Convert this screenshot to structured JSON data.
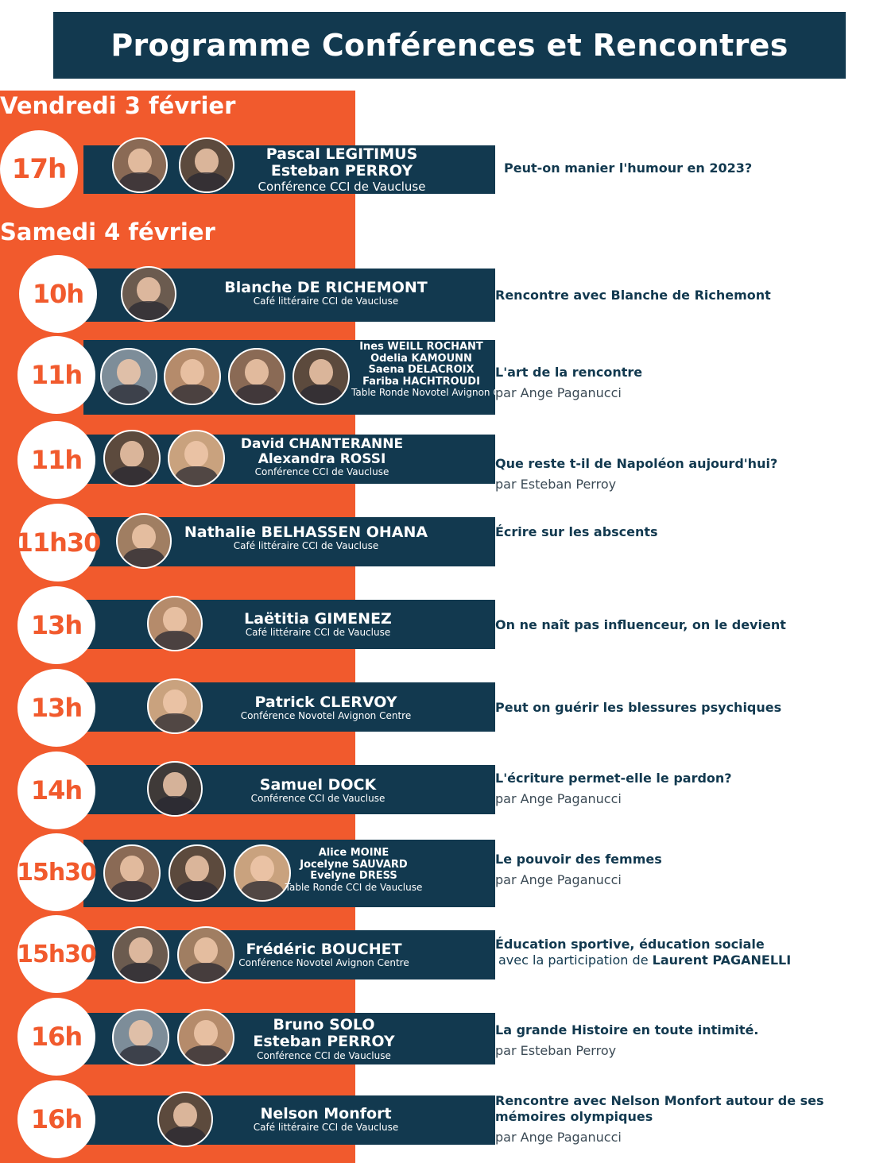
{
  "header": {
    "title": "Programme Conférences et Rencontres"
  },
  "days": {
    "friday": "Vendredi 3 février",
    "saturday": "Samedi 4 février"
  },
  "events": [
    {
      "time": "17h",
      "names": [
        "Pascal LEGITIMUS",
        "Esteban PERROY"
      ],
      "venue": "Conférence CCI de Vaucluse",
      "topic": "Peut-on manier l'humour en 2023?"
    },
    {
      "time": "10h",
      "names": [
        "Blanche DE RICHEMONT"
      ],
      "venue": "Café littéraire CCI de Vaucluse",
      "topic": "Rencontre avec Blanche de Richemont"
    },
    {
      "time": "11h",
      "names": [
        "Ines WEILL ROCHANT",
        "Odelia KAMOUNN",
        "Saena DELACROIX",
        "Fariba HACHTROUDI"
      ],
      "venue": "Table Ronde Novotel Avignon Centre",
      "topic": "L'art de la rencontre",
      "by": "par Ange Paganucci"
    },
    {
      "time": "11h",
      "names": [
        "David CHANTERANNE",
        "Alexandra ROSSI"
      ],
      "venue": "Conférence CCI de Vaucluse",
      "topic": "Que reste t-il de Napoléon aujourd'hui?",
      "by": "par Esteban Perroy"
    },
    {
      "time": "11h30",
      "names": [
        "Nathalie BELHASSEN OHANA"
      ],
      "venue": "Café littéraire CCI de Vaucluse",
      "topic": "Écrire sur les abscents"
    },
    {
      "time": "13h",
      "names": [
        "Laëtitia GIMENEZ"
      ],
      "venue": "Café littéraire CCI de Vaucluse",
      "topic": "On ne naît pas influenceur, on le devient"
    },
    {
      "time": "13h",
      "names": [
        "Patrick CLERVOY"
      ],
      "venue": "Conférence Novotel Avignon Centre",
      "topic": "Peut on guérir les blessures psychiques"
    },
    {
      "time": "14h",
      "names": [
        "Samuel DOCK"
      ],
      "venue": "Conférence CCI de Vaucluse",
      "topic": "L'écriture permet-elle le pardon?",
      "by": "par Ange Paganucci"
    },
    {
      "time": "15h30",
      "names": [
        "Alice MOINE",
        "Jocelyne SAUVARD",
        "Evelyne DRESS"
      ],
      "venue": "Table Ronde CCI de Vaucluse",
      "topic": "Le pouvoir des femmes",
      "by": "par Ange Paganucci"
    },
    {
      "time": "15h30",
      "names": [
        "Frédéric BOUCHET"
      ],
      "venue": "Conférence Novotel Avignon Centre",
      "topic": "Éducation sportive, éducation sociale",
      "with_prefix": "avec la participation de",
      "with_name": "Laurent PAGANELLI"
    },
    {
      "time": "16h",
      "names": [
        "Bruno SOLO",
        "Esteban PERROY"
      ],
      "venue": "Conférence CCI de Vaucluse",
      "topic": "La grande Histoire en toute intimité.",
      "by": "par Esteban Perroy"
    },
    {
      "time": "16h",
      "names": [
        "Nelson Monfort"
      ],
      "venue": "Café littéraire CCI de Vaucluse",
      "topic": "Rencontre avec Nelson Monfort autour de ses mémoires olympiques",
      "by": "par Ange Paganucci"
    }
  ],
  "colors": {
    "orange": "#f15a2d",
    "navy": "#12394f",
    "white": "#ffffff"
  }
}
